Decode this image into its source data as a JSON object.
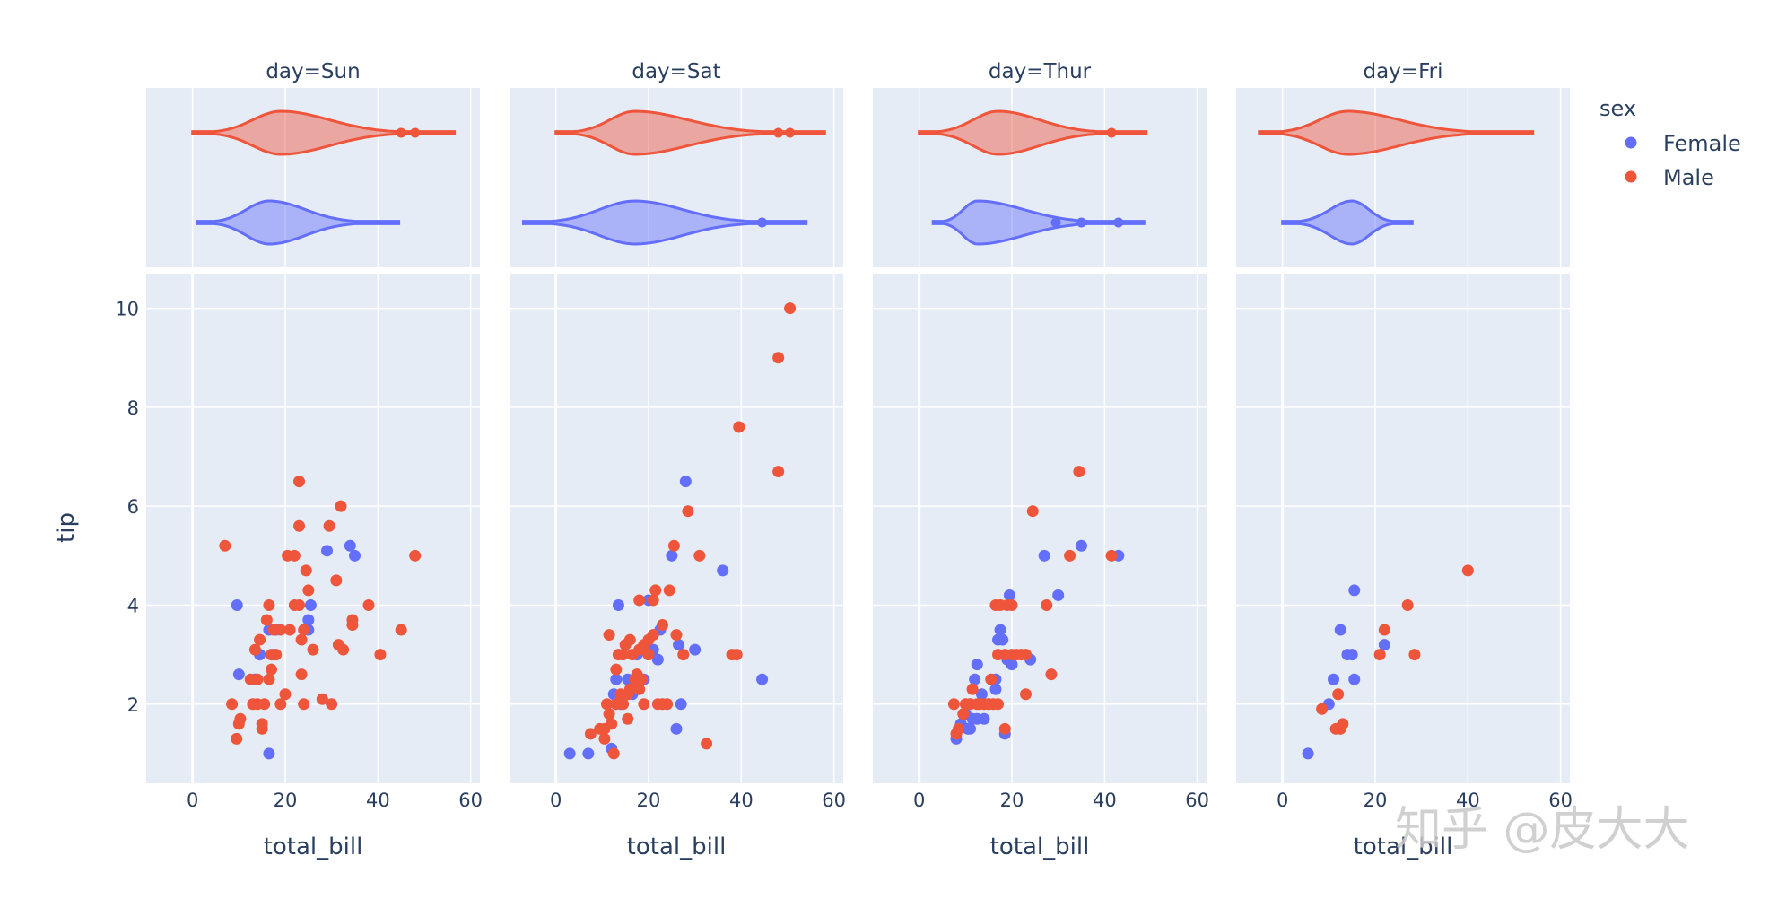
{
  "chart_data": {
    "type": "scatter",
    "description": "Faceted scatter of tip vs total_bill by day, colored by sex, with marginal violin plots of total_bill",
    "facet_titles": [
      "day=Sun",
      "day=Sat",
      "day=Thur",
      "day=Fri"
    ],
    "xlabel": "total_bill",
    "ylabel": "tip",
    "xlim": [
      -10,
      62
    ],
    "ylim": [
      0.4,
      10.7
    ],
    "x_ticks": [
      0,
      20,
      40,
      60
    ],
    "y_ticks": [
      2,
      4,
      6,
      8,
      10
    ],
    "grid": true,
    "legend": {
      "title": "sex",
      "position": "top-right",
      "entries": [
        "Female",
        "Male"
      ]
    },
    "colors": {
      "Female": "#636efa",
      "Male": "#ef553b",
      "plot_bg": "#e5ecf6",
      "grid": "#ffffff",
      "text": "#2a3f5f"
    },
    "marginal": "violin",
    "series": [
      {
        "name": "Female",
        "facet": "day=Sun",
        "violin_range": [
          1,
          44.5
        ],
        "violin_mode": 16.5,
        "violin_outliers": [],
        "points": [
          [
            9.6,
            4
          ],
          [
            10,
            2.6
          ],
          [
            13.5,
            2.5
          ],
          [
            14.5,
            3
          ],
          [
            16.5,
            3.5
          ],
          [
            17.5,
            3
          ],
          [
            16.5,
            1
          ],
          [
            18,
            3.5
          ],
          [
            25,
            3.5
          ],
          [
            25,
            3.7
          ],
          [
            25.5,
            4
          ],
          [
            29,
            5.1
          ],
          [
            34,
            5.2
          ],
          [
            35,
            5
          ]
        ]
      },
      {
        "name": "Male",
        "facet": "day=Sun",
        "violin_range": [
          0,
          56.5
        ],
        "violin_mode": 19,
        "violin_outliers": [
          45,
          48
        ],
        "points": [
          [
            7,
            5.2
          ],
          [
            8.5,
            2
          ],
          [
            9.5,
            1.3
          ],
          [
            10,
            1.6
          ],
          [
            10.3,
            1.7
          ],
          [
            12.5,
            2.5
          ],
          [
            13,
            2
          ],
          [
            13.5,
            3.1
          ],
          [
            14,
            2.5
          ],
          [
            14,
            2
          ],
          [
            14.5,
            3.3
          ],
          [
            15,
            1.5
          ],
          [
            15,
            1.6
          ],
          [
            15.5,
            2
          ],
          [
            16,
            3.7
          ],
          [
            16.5,
            4
          ],
          [
            16.5,
            2.5
          ],
          [
            17,
            2.7
          ],
          [
            17,
            3
          ],
          [
            17.5,
            3.5
          ],
          [
            18,
            3
          ],
          [
            19,
            2
          ],
          [
            19,
            3.5
          ],
          [
            20,
            2.2
          ],
          [
            20.5,
            5
          ],
          [
            21,
            3.5
          ],
          [
            22,
            4
          ],
          [
            22,
            5
          ],
          [
            23,
            4
          ],
          [
            23,
            6.5
          ],
          [
            23,
            5.6
          ],
          [
            23.5,
            3.3
          ],
          [
            23.5,
            2.6
          ],
          [
            24,
            3.5
          ],
          [
            24,
            2
          ],
          [
            24.5,
            4.7
          ],
          [
            25,
            4.3
          ],
          [
            26,
            3.1
          ],
          [
            28,
            2.1
          ],
          [
            29.5,
            5.6
          ],
          [
            30,
            2
          ],
          [
            31,
            4.5
          ],
          [
            31.5,
            3.2
          ],
          [
            32,
            6
          ],
          [
            32.5,
            3.1
          ],
          [
            34.5,
            3.7
          ],
          [
            34.5,
            3.6
          ],
          [
            38,
            4
          ],
          [
            40.5,
            3
          ],
          [
            45,
            3.5
          ],
          [
            48,
            5
          ]
        ]
      },
      {
        "name": "Female",
        "facet": "day=Sat",
        "violin_range": [
          -7,
          54
        ],
        "violin_mode": 17,
        "violin_outliers": [
          44.5
        ],
        "points": [
          [
            3,
            1
          ],
          [
            7,
            1
          ],
          [
            12,
            1.1
          ],
          [
            12.5,
            2.2
          ],
          [
            13,
            2.5
          ],
          [
            13.5,
            4
          ],
          [
            14,
            2
          ],
          [
            15.5,
            2.5
          ],
          [
            16.5,
            2.2
          ],
          [
            17.5,
            3
          ],
          [
            19,
            2.5
          ],
          [
            20,
            3
          ],
          [
            20,
            4.1
          ],
          [
            21,
            3.1
          ],
          [
            22,
            2.9
          ],
          [
            22.5,
            3.5
          ],
          [
            25,
            5
          ],
          [
            26,
            1.5
          ],
          [
            26.5,
            3.2
          ],
          [
            27,
            2
          ],
          [
            28,
            6.5
          ],
          [
            30,
            3.1
          ],
          [
            36,
            4.7
          ],
          [
            44.5,
            2.5
          ]
        ]
      },
      {
        "name": "Male",
        "facet": "day=Sat",
        "violin_range": [
          0,
          58
        ],
        "violin_mode": 17,
        "violin_outliers": [
          48,
          50.5
        ],
        "points": [
          [
            7.5,
            1.4
          ],
          [
            9.5,
            1.5
          ],
          [
            10.5,
            1.3
          ],
          [
            10.5,
            1.5
          ],
          [
            11,
            2
          ],
          [
            11.5,
            1.8
          ],
          [
            11.5,
            3.4
          ],
          [
            12,
            1.6
          ],
          [
            12.5,
            1
          ],
          [
            13,
            2
          ],
          [
            13,
            2.7
          ],
          [
            13.5,
            3
          ],
          [
            14,
            2.2
          ],
          [
            14.5,
            3
          ],
          [
            14.5,
            2
          ],
          [
            15,
            3.2
          ],
          [
            15.5,
            1.7
          ],
          [
            15.5,
            2.2
          ],
          [
            16,
            3.3
          ],
          [
            16,
            2.3
          ],
          [
            16.5,
            3
          ],
          [
            17,
            2.5
          ],
          [
            17.5,
            2.6
          ],
          [
            18,
            3.1
          ],
          [
            18,
            4.1
          ],
          [
            18,
            2.3
          ],
          [
            18.5,
            2.5
          ],
          [
            19,
            3.2
          ],
          [
            19,
            2
          ],
          [
            20,
            3
          ],
          [
            20,
            3.3
          ],
          [
            21,
            4.1
          ],
          [
            21,
            3.4
          ],
          [
            21.5,
            4.3
          ],
          [
            22,
            2
          ],
          [
            23,
            3.6
          ],
          [
            23,
            2
          ],
          [
            24,
            2
          ],
          [
            24.5,
            4.3
          ],
          [
            25.5,
            5.2
          ],
          [
            26,
            3.4
          ],
          [
            27.5,
            3
          ],
          [
            28.5,
            5.9
          ],
          [
            31,
            5
          ],
          [
            32.5,
            1.2
          ],
          [
            38,
            3
          ],
          [
            39,
            3
          ],
          [
            39.5,
            7.6
          ],
          [
            48,
            9
          ],
          [
            48,
            6.7
          ],
          [
            50.5,
            10
          ]
        ]
      },
      {
        "name": "Female",
        "facet": "day=Thur",
        "violin_range": [
          3,
          48.5
        ],
        "violin_mode": 12.5,
        "violin_outliers": [
          29.5,
          35,
          43
        ],
        "points": [
          [
            8,
            1.3
          ],
          [
            9,
            1.6
          ],
          [
            10,
            1.8
          ],
          [
            10.5,
            1.5
          ],
          [
            11,
            2
          ],
          [
            11,
            1.5
          ],
          [
            11.5,
            1.7
          ],
          [
            12,
            2.5
          ],
          [
            12.5,
            1.7
          ],
          [
            12.5,
            2.8
          ],
          [
            13.5,
            2.2
          ],
          [
            14,
            1.7
          ],
          [
            15,
            2
          ],
          [
            16.5,
            2.3
          ],
          [
            16.5,
            2.5
          ],
          [
            17,
            3.3
          ],
          [
            17.5,
            3.5
          ],
          [
            18,
            3.3
          ],
          [
            18.5,
            1.4
          ],
          [
            19,
            2.9
          ],
          [
            19.5,
            4.2
          ],
          [
            20,
            2.8
          ],
          [
            24,
            2.9
          ],
          [
            27,
            5
          ],
          [
            30,
            4.2
          ],
          [
            35,
            5.2
          ],
          [
            43,
            5
          ]
        ]
      },
      {
        "name": "Male",
        "facet": "day=Thur",
        "violin_range": [
          0,
          49
        ],
        "violin_mode": 17,
        "violin_outliers": [
          41.5
        ],
        "points": [
          [
            7.5,
            2
          ],
          [
            8,
            1.4
          ],
          [
            8.5,
            1.5
          ],
          [
            9.5,
            1.8
          ],
          [
            10,
            2
          ],
          [
            11,
            2
          ],
          [
            11.5,
            2.3
          ],
          [
            12.5,
            2
          ],
          [
            13,
            2
          ],
          [
            14,
            2
          ],
          [
            15,
            2
          ],
          [
            15.5,
            2.5
          ],
          [
            16,
            2
          ],
          [
            16.5,
            4
          ],
          [
            17,
            2
          ],
          [
            17,
            3
          ],
          [
            17.5,
            4
          ],
          [
            18.5,
            1.5
          ],
          [
            18.5,
            3
          ],
          [
            19,
            4
          ],
          [
            20,
            3
          ],
          [
            20,
            4
          ],
          [
            21,
            3
          ],
          [
            22,
            3
          ],
          [
            23,
            2.2
          ],
          [
            23,
            3
          ],
          [
            24.5,
            5.9
          ],
          [
            27.5,
            4
          ],
          [
            28.5,
            2.6
          ],
          [
            32.5,
            5
          ],
          [
            34.5,
            6.7
          ],
          [
            41.5,
            5
          ]
        ]
      },
      {
        "name": "Female",
        "facet": "day=Fri",
        "violin_range": [
          0,
          28
        ],
        "violin_mode": 15,
        "violin_outliers": [],
        "points": [
          [
            5.5,
            1
          ],
          [
            10,
            2
          ],
          [
            11,
            2.5
          ],
          [
            12.5,
            3.5
          ],
          [
            14,
            3
          ],
          [
            15,
            3
          ],
          [
            15.5,
            4.3
          ],
          [
            15.5,
            2.5
          ],
          [
            22,
            3.2
          ]
        ]
      },
      {
        "name": "Male",
        "facet": "day=Fri",
        "violin_range": [
          -5,
          54
        ],
        "violin_mode": 14,
        "violin_outliers": [],
        "points": [
          [
            8.5,
            1.9
          ],
          [
            11.5,
            1.5
          ],
          [
            12,
            2.2
          ],
          [
            12.5,
            1.5
          ],
          [
            13,
            1.6
          ],
          [
            21,
            3
          ],
          [
            22,
            3.5
          ],
          [
            27,
            4
          ],
          [
            28.5,
            3
          ],
          [
            40,
            4.7
          ]
        ]
      }
    ]
  },
  "watermark": "知乎 @皮大大"
}
